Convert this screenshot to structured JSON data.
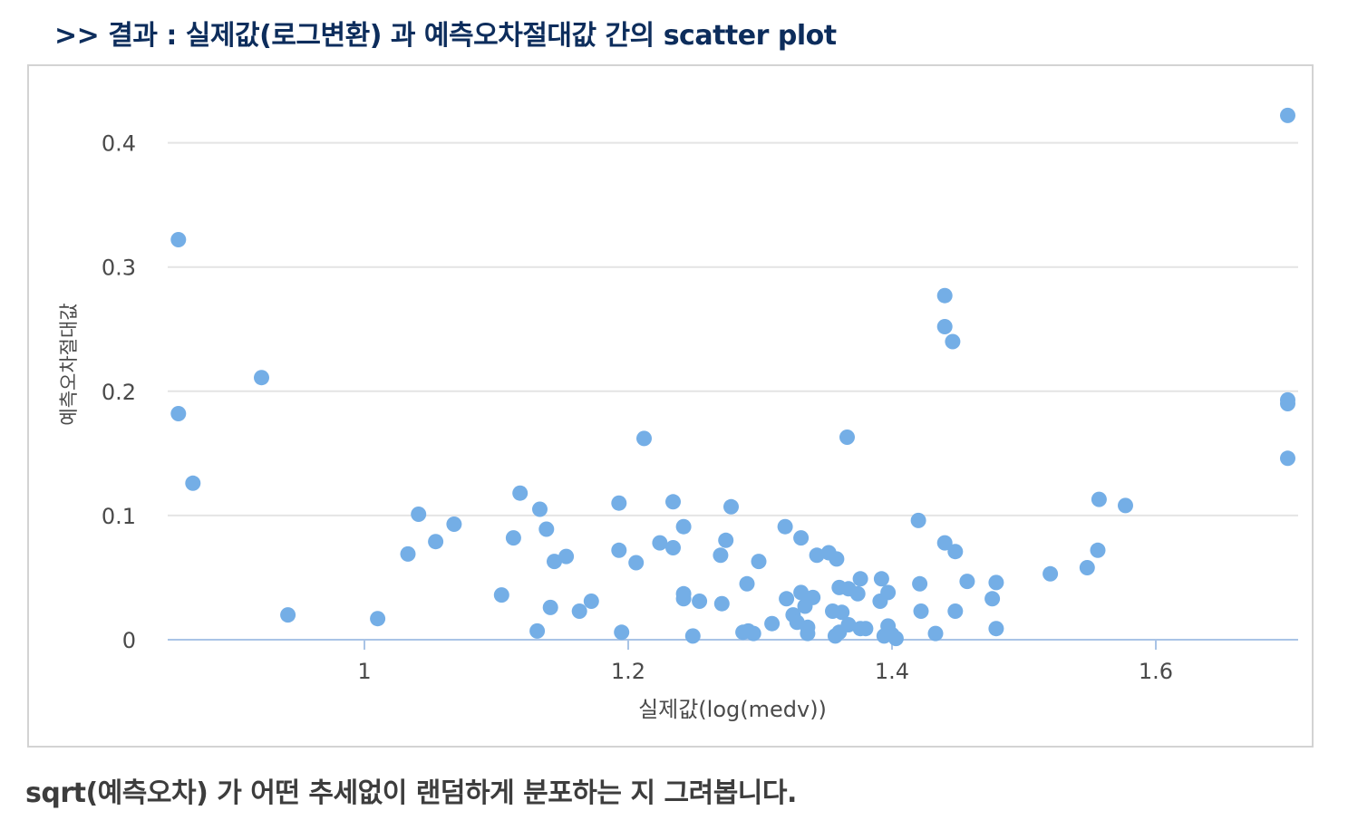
{
  "heading": ">> 결과 :  실제값(로그변환) 과 예측오차절대값 간의 scatter plot",
  "caption": "sqrt(예측오차) 가 어떤 추세없이 랜덤하게 분포하는 지 그려봅니다.",
  "colors": {
    "point": "#74aee6",
    "grid": "#e4e4e4",
    "axis": "#a9c4e6",
    "tick_text": "#4a4a4a"
  },
  "chart_data": {
    "type": "scatter",
    "xlabel": "실제값(log(medv))",
    "ylabel": "예측오차절대값",
    "xlim": [
      0.85,
      1.71
    ],
    "ylim": [
      0,
      0.44
    ],
    "xticks": [
      1,
      1.2,
      1.4,
      1.6
    ],
    "xtick_labels": [
      "1",
      "1.2",
      "1.4",
      "1.6"
    ],
    "yticks": [
      0,
      0.1,
      0.2,
      0.3,
      0.4
    ],
    "ytick_labels": [
      "0",
      "0.1",
      "0.2",
      "0.3",
      "0.4"
    ],
    "grid": true,
    "legend": "none",
    "points": [
      [
        0.859,
        0.322
      ],
      [
        0.859,
        0.182
      ],
      [
        0.87,
        0.126
      ],
      [
        0.922,
        0.211
      ],
      [
        0.942,
        0.02
      ],
      [
        1.01,
        0.017
      ],
      [
        1.033,
        0.069
      ],
      [
        1.041,
        0.101
      ],
      [
        1.054,
        0.079
      ],
      [
        1.068,
        0.093
      ],
      [
        1.104,
        0.036
      ],
      [
        1.113,
        0.082
      ],
      [
        1.118,
        0.118
      ],
      [
        1.131,
        0.007
      ],
      [
        1.133,
        0.105
      ],
      [
        1.138,
        0.089
      ],
      [
        1.141,
        0.026
      ],
      [
        1.144,
        0.063
      ],
      [
        1.153,
        0.067
      ],
      [
        1.163,
        0.023
      ],
      [
        1.172,
        0.031
      ],
      [
        1.193,
        0.11
      ],
      [
        1.193,
        0.072
      ],
      [
        1.195,
        0.006
      ],
      [
        1.206,
        0.062
      ],
      [
        1.212,
        0.162
      ],
      [
        1.224,
        0.078
      ],
      [
        1.234,
        0.074
      ],
      [
        1.234,
        0.111
      ],
      [
        1.242,
        0.091
      ],
      [
        1.242,
        0.037
      ],
      [
        1.242,
        0.033
      ],
      [
        1.249,
        0.003
      ],
      [
        1.254,
        0.031
      ],
      [
        1.27,
        0.068
      ],
      [
        1.271,
        0.029
      ],
      [
        1.274,
        0.08
      ],
      [
        1.278,
        0.107
      ],
      [
        1.287,
        0.006
      ],
      [
        1.29,
        0.045
      ],
      [
        1.291,
        0.007
      ],
      [
        1.295,
        0.005
      ],
      [
        1.299,
        0.063
      ],
      [
        1.309,
        0.013
      ],
      [
        1.319,
        0.091
      ],
      [
        1.32,
        0.033
      ],
      [
        1.325,
        0.02
      ],
      [
        1.328,
        0.014
      ],
      [
        1.331,
        0.082
      ],
      [
        1.331,
        0.038
      ],
      [
        1.334,
        0.027
      ],
      [
        1.336,
        0.01
      ],
      [
        1.336,
        0.005
      ],
      [
        1.34,
        0.034
      ],
      [
        1.343,
        0.068
      ],
      [
        1.352,
        0.07
      ],
      [
        1.355,
        0.023
      ],
      [
        1.357,
        0.003
      ],
      [
        1.358,
        0.065
      ],
      [
        1.36,
        0.042
      ],
      [
        1.36,
        0.006
      ],
      [
        1.362,
        0.022
      ],
      [
        1.366,
        0.163
      ],
      [
        1.367,
        0.012
      ],
      [
        1.367,
        0.041
      ],
      [
        1.374,
        0.037
      ],
      [
        1.376,
        0.049
      ],
      [
        1.376,
        0.009
      ],
      [
        1.38,
        0.009
      ],
      [
        1.391,
        0.031
      ],
      [
        1.392,
        0.049
      ],
      [
        1.394,
        0.003
      ],
      [
        1.397,
        0.038
      ],
      [
        1.397,
        0.011
      ],
      [
        1.4,
        0.004
      ],
      [
        1.403,
        0.001
      ],
      [
        1.42,
        0.096
      ],
      [
        1.421,
        0.045
      ],
      [
        1.422,
        0.023
      ],
      [
        1.433,
        0.005
      ],
      [
        1.44,
        0.277
      ],
      [
        1.44,
        0.252
      ],
      [
        1.44,
        0.078
      ],
      [
        1.446,
        0.24
      ],
      [
        1.448,
        0.071
      ],
      [
        1.448,
        0.023
      ],
      [
        1.457,
        0.047
      ],
      [
        1.476,
        0.033
      ],
      [
        1.479,
        0.046
      ],
      [
        1.479,
        0.009
      ],
      [
        1.52,
        0.053
      ],
      [
        1.548,
        0.058
      ],
      [
        1.556,
        0.072
      ],
      [
        1.557,
        0.113
      ],
      [
        1.577,
        0.108
      ],
      [
        1.7,
        0.422
      ],
      [
        1.7,
        0.193
      ],
      [
        1.7,
        0.19
      ],
      [
        1.7,
        0.146
      ]
    ]
  }
}
